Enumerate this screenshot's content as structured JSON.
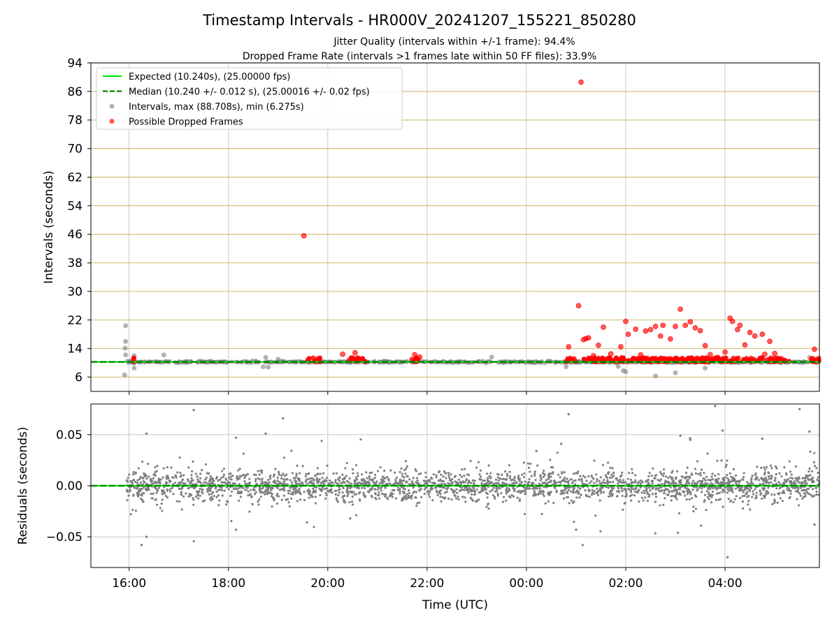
{
  "title": "Timestamp Intervals - HR000V_20241207_155221_850280",
  "subtitle_1": "Jitter Quality (intervals within +/-1 frame): 94.4%",
  "subtitle_2": "Dropped Frame Rate (intervals >1 frames late within 50 FF files): 33.9%",
  "colors": {
    "expected": "#00ee00",
    "median": "#008000",
    "intervals": "#808080",
    "dropped": "#ff0000",
    "hgrid": "#d2c07a",
    "vgrid": "#c8c8c8"
  },
  "chart_data": [
    {
      "type": "scatter",
      "name": "intervals",
      "ylabel": "Intervals (seconds)",
      "ylim": [
        2.0,
        94.0
      ],
      "yticks": [
        "94",
        "86",
        "78",
        "70",
        "62",
        "54",
        "46",
        "38",
        "30",
        "22",
        "14",
        "6"
      ],
      "grid": "on",
      "legend_placement": "top-left",
      "legend": [
        {
          "label": "Expected (10.240s), (25.00000 fps)",
          "style": "solid-line"
        },
        {
          "label": "Median (10.240 +/- 0.012 s), (25.00016 +/- 0.02 fps)",
          "style": "dashed-line"
        },
        {
          "label": "Intervals, max (88.708s), min (6.275s)",
          "style": "grey-dot"
        },
        {
          "label": "Possible Dropped Frames",
          "style": "red-dot"
        }
      ],
      "expected_interval": 10.24,
      "median_interval": 10.24,
      "xlim_hours": [
        15.23,
        29.9
      ],
      "intervals_series": {
        "baseline_range": [
          15.95,
          29.9
        ],
        "baseline_value": 10.24,
        "outliers": [
          {
            "t": 15.93,
            "v": 20.4
          },
          {
            "t": 15.93,
            "v": 16.0
          },
          {
            "t": 15.92,
            "v": 14.1
          },
          {
            "t": 15.93,
            "v": 12.2
          },
          {
            "t": 15.91,
            "v": 6.6
          },
          {
            "t": 16.1,
            "v": 8.5
          },
          {
            "t": 16.1,
            "v": 12.0
          },
          {
            "t": 16.7,
            "v": 12.2
          },
          {
            "t": 18.7,
            "v": 8.9
          },
          {
            "t": 18.8,
            "v": 8.8
          },
          {
            "t": 18.75,
            "v": 11.5
          },
          {
            "t": 19.0,
            "v": 11.0
          },
          {
            "t": 23.3,
            "v": 11.6
          },
          {
            "t": 24.8,
            "v": 8.9
          },
          {
            "t": 25.85,
            "v": 9.0
          },
          {
            "t": 25.95,
            "v": 7.8
          },
          {
            "t": 26.0,
            "v": 7.5
          },
          {
            "t": 26.6,
            "v": 6.3
          },
          {
            "t": 27.0,
            "v": 7.2
          },
          {
            "t": 27.6,
            "v": 8.5
          },
          {
            "t": 29.7,
            "v": 11.5
          }
        ]
      },
      "dropped_series": {
        "baseline_clusters": [
          {
            "t_start": 16.08,
            "t_end": 16.1
          },
          {
            "t_start": 19.6,
            "t_end": 19.85
          },
          {
            "t_start": 20.4,
            "t_end": 20.75
          },
          {
            "t_start": 21.65,
            "t_end": 21.85
          },
          {
            "t_start": 24.8,
            "t_end": 25.0
          },
          {
            "t_start": 25.15,
            "t_end": 29.3
          },
          {
            "t_start": 29.7,
            "t_end": 29.9
          }
        ],
        "points": [
          {
            "t": 19.52,
            "v": 45.6
          },
          {
            "t": 25.1,
            "v": 88.6
          },
          {
            "t": 25.05,
            "v": 26.0
          },
          {
            "t": 20.3,
            "v": 12.4
          },
          {
            "t": 20.55,
            "v": 12.8
          },
          {
            "t": 21.75,
            "v": 12.3
          },
          {
            "t": 21.85,
            "v": 11.6
          },
          {
            "t": 24.85,
            "v": 14.5
          },
          {
            "t": 25.2,
            "v": 16.8
          },
          {
            "t": 25.15,
            "v": 16.5
          },
          {
            "t": 25.25,
            "v": 17.0
          },
          {
            "t": 25.45,
            "v": 14.9
          },
          {
            "t": 25.55,
            "v": 20.0
          },
          {
            "t": 25.7,
            "v": 12.5
          },
          {
            "t": 25.9,
            "v": 14.5
          },
          {
            "t": 26.0,
            "v": 21.6
          },
          {
            "t": 26.05,
            "v": 18.0
          },
          {
            "t": 26.2,
            "v": 19.4
          },
          {
            "t": 26.3,
            "v": 12.2
          },
          {
            "t": 26.4,
            "v": 18.9
          },
          {
            "t": 26.5,
            "v": 19.3
          },
          {
            "t": 26.6,
            "v": 20.2
          },
          {
            "t": 26.7,
            "v": 17.5
          },
          {
            "t": 26.75,
            "v": 20.5
          },
          {
            "t": 26.9,
            "v": 16.7
          },
          {
            "t": 27.0,
            "v": 20.2
          },
          {
            "t": 27.1,
            "v": 25.0
          },
          {
            "t": 27.2,
            "v": 20.5
          },
          {
            "t": 27.3,
            "v": 21.5
          },
          {
            "t": 27.4,
            "v": 19.8
          },
          {
            "t": 27.5,
            "v": 19.0
          },
          {
            "t": 27.6,
            "v": 14.8
          },
          {
            "t": 27.85,
            "v": 11.5
          },
          {
            "t": 28.1,
            "v": 22.5
          },
          {
            "t": 28.15,
            "v": 21.6
          },
          {
            "t": 28.25,
            "v": 19.3
          },
          {
            "t": 28.3,
            "v": 20.5
          },
          {
            "t": 28.4,
            "v": 15.0
          },
          {
            "t": 28.5,
            "v": 18.5
          },
          {
            "t": 28.6,
            "v": 17.5
          },
          {
            "t": 28.75,
            "v": 18.0
          },
          {
            "t": 28.9,
            "v": 16.0
          },
          {
            "t": 29.0,
            "v": 12.6
          },
          {
            "t": 29.8,
            "v": 13.8
          },
          {
            "t": 25.35,
            "v": 12.0
          },
          {
            "t": 27.7,
            "v": 12.3
          },
          {
            "t": 28.0,
            "v": 13.0
          },
          {
            "t": 28.8,
            "v": 12.4
          }
        ]
      }
    },
    {
      "type": "scatter",
      "name": "residuals",
      "xlabel": "Time (UTC)",
      "ylabel": "Residuals (seconds)",
      "ylim": [
        -0.08,
        0.08
      ],
      "yticks": [
        "0.05",
        "0.00",
        "−0.05"
      ],
      "xticks": [
        "16:00",
        "18:00",
        "20:00",
        "22:00",
        "00:00",
        "02:00",
        "04:00"
      ],
      "xtick_hours": [
        16,
        18,
        20,
        22,
        24,
        26,
        28
      ],
      "xlim_hours": [
        15.23,
        29.9
      ],
      "grid": "on",
      "residual_range": [
        15.95,
        29.9
      ],
      "residual_typical_spread": 0.012,
      "outliers": [
        {
          "t": 16.25,
          "v": -0.058
        },
        {
          "t": 16.35,
          "v": -0.05
        },
        {
          "t": 16.35,
          "v": 0.051
        },
        {
          "t": 17.3,
          "v": 0.074
        },
        {
          "t": 18.15,
          "v": 0.047
        },
        {
          "t": 18.15,
          "v": -0.043
        },
        {
          "t": 18.75,
          "v": 0.051
        },
        {
          "t": 19.1,
          "v": 0.066
        },
        {
          "t": 20.45,
          "v": -0.032
        },
        {
          "t": 24.2,
          "v": 0.034
        },
        {
          "t": 24.7,
          "v": 0.041
        },
        {
          "t": 24.85,
          "v": 0.07
        },
        {
          "t": 25.0,
          "v": -0.043
        },
        {
          "t": 27.8,
          "v": 0.078
        },
        {
          "t": 27.95,
          "v": 0.054
        },
        {
          "t": 27.1,
          "v": 0.049
        },
        {
          "t": 28.05,
          "v": -0.07
        },
        {
          "t": 27.05,
          "v": -0.046
        },
        {
          "t": 28.75,
          "v": 0.046
        },
        {
          "t": 29.5,
          "v": 0.075
        },
        {
          "t": 29.7,
          "v": 0.053
        },
        {
          "t": 27.3,
          "v": 0.045
        },
        {
          "t": 29.8,
          "v": -0.038
        }
      ]
    }
  ]
}
